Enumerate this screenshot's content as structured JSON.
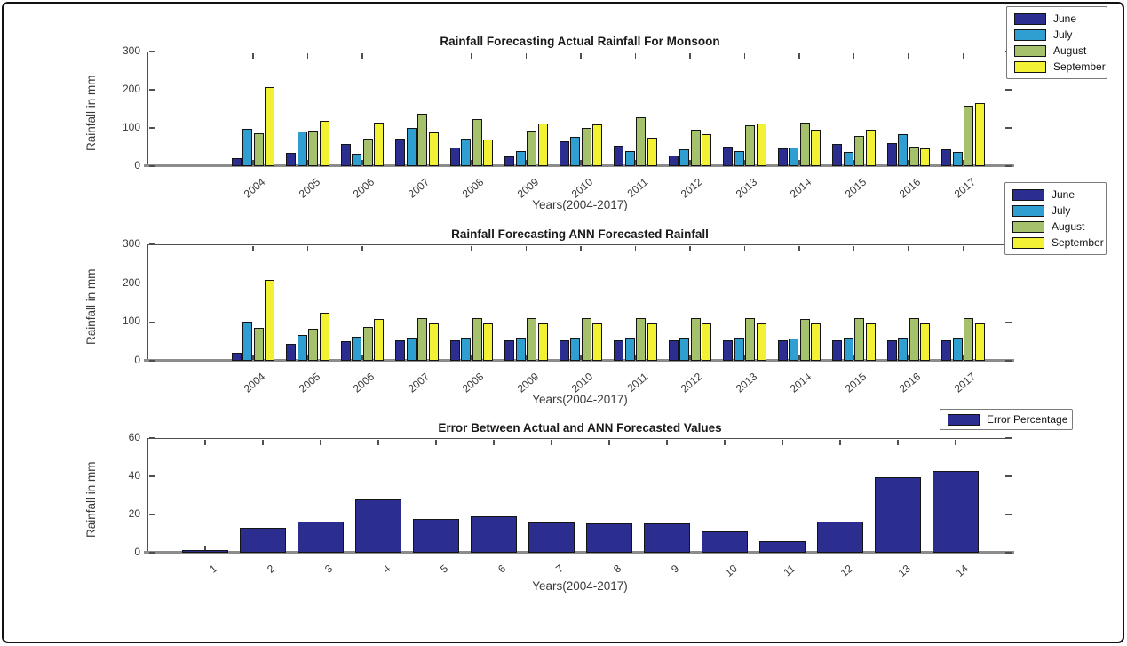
{
  "figure": {
    "background": "#ffffff",
    "border_color": "#111111",
    "axis_color": "#4f4f4f",
    "text_color": "#3a3a3a"
  },
  "chart_data": [
    {
      "type": "bar",
      "title": "Rainfall Forecasting Actual Rainfall For Monsoon",
      "xlabel": "Years(2004-2017)",
      "ylabel": "Rainfall in mm",
      "ylim": [
        0,
        300
      ],
      "yticks": [
        0,
        100,
        200,
        300
      ],
      "grid": false,
      "legend_position": "outside-top-right",
      "categories": [
        "2004",
        "2005",
        "2006",
        "2007",
        "2008",
        "2009",
        "2010",
        "2011",
        "2012",
        "2013",
        "2014",
        "2015",
        "2016",
        "2017"
      ],
      "series": [
        {
          "name": "June",
          "color": "#2b2e8f",
          "values": [
            20,
            35,
            57,
            72,
            50,
            26,
            65,
            53,
            27,
            51,
            46,
            59,
            60,
            45
          ]
        },
        {
          "name": "July",
          "color": "#2f9fd1",
          "values": [
            98,
            90,
            33,
            99,
            71,
            40,
            77,
            40,
            44,
            39,
            49,
            38,
            84,
            38
          ]
        },
        {
          "name": "August",
          "color": "#a5c16c",
          "values": [
            86,
            93,
            73,
            137,
            123,
            94,
            100,
            127,
            95,
            108,
            115,
            79,
            51,
            158
          ]
        },
        {
          "name": "September",
          "color": "#f3f133",
          "values": [
            208,
            118,
            115,
            88,
            69,
            112,
            109,
            74,
            83,
            112,
            95,
            96,
            47,
            164
          ]
        }
      ]
    },
    {
      "type": "bar",
      "title": "Rainfall Forecasting ANN Forecasted Rainfall",
      "xlabel": "Years(2004-2017)",
      "ylabel": "Rainfall in mm",
      "ylim": [
        0,
        300
      ],
      "yticks": [
        0,
        100,
        200,
        300
      ],
      "grid": false,
      "legend_position": "outside-top-right",
      "categories": [
        "2004",
        "2005",
        "2006",
        "2007",
        "2008",
        "2009",
        "2010",
        "2011",
        "2012",
        "2013",
        "2014",
        "2015",
        "2016",
        "2017"
      ],
      "series": [
        {
          "name": "June",
          "color": "#2b2e8f",
          "values": [
            21,
            44,
            50,
            52,
            52,
            53,
            52,
            52,
            52,
            52,
            52,
            52,
            52,
            52
          ]
        },
        {
          "name": "July",
          "color": "#2f9fd1",
          "values": [
            101,
            66,
            61,
            59,
            59,
            59,
            59,
            59,
            59,
            59,
            58,
            59,
            59,
            59
          ]
        },
        {
          "name": "August",
          "color": "#a5c16c",
          "values": [
            84,
            82,
            88,
            109,
            110,
            109,
            110,
            110,
            110,
            109,
            108,
            109,
            109,
            109
          ]
        },
        {
          "name": "September",
          "color": "#f3f133",
          "values": [
            208,
            124,
            108,
            97,
            97,
            97,
            97,
            97,
            96,
            96,
            97,
            97,
            97,
            96
          ]
        }
      ]
    },
    {
      "type": "bar",
      "title": "Error Between Actual and ANN Forecasted Values",
      "xlabel": "Years(2004-2017)",
      "ylabel": "Rainfall in mm",
      "ylim": [
        0,
        60
      ],
      "yticks": [
        0,
        20,
        40,
        60
      ],
      "grid": false,
      "legend_position": "outside-top-right",
      "categories": [
        "1",
        "2",
        "3",
        "4",
        "5",
        "6",
        "7",
        "8",
        "9",
        "10",
        "11",
        "12",
        "13",
        "14"
      ],
      "series": [
        {
          "name": "Error Percentage",
          "color": "#2b2e8f",
          "values": [
            1.5,
            13,
            16.5,
            28,
            17.5,
            19,
            16,
            15.5,
            15.5,
            11,
            6,
            16.5,
            39.5,
            43
          ]
        }
      ]
    }
  ]
}
